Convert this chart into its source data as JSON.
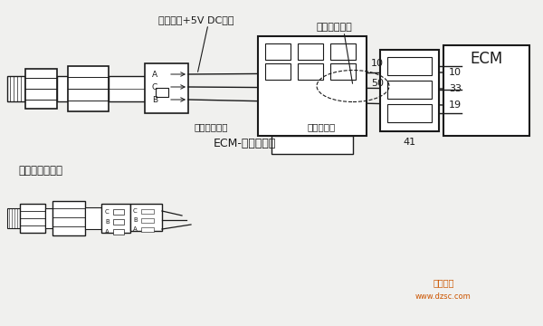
{
  "bg_color": "#f0f0ee",
  "line_color": "#1a1a1a",
  "title": "ECM-发动机线束",
  "label_sensor": "机油压力传感器",
  "label_power": "机油压力+5V DC电源",
  "label_signal": "机油压力信号",
  "label_ground": "机油压力回路",
  "label_harness": "发动机线束",
  "label_ecm": "ECM",
  "pins_top": [
    "10",
    "33",
    "19"
  ],
  "pins_bottom_left": [
    "10",
    "50"
  ],
  "pins_bottom_right": "41",
  "connector_labels": [
    "A",
    "C",
    "B"
  ],
  "watermark1": "维库一下",
  "watermark2": "www.dzsc.com"
}
